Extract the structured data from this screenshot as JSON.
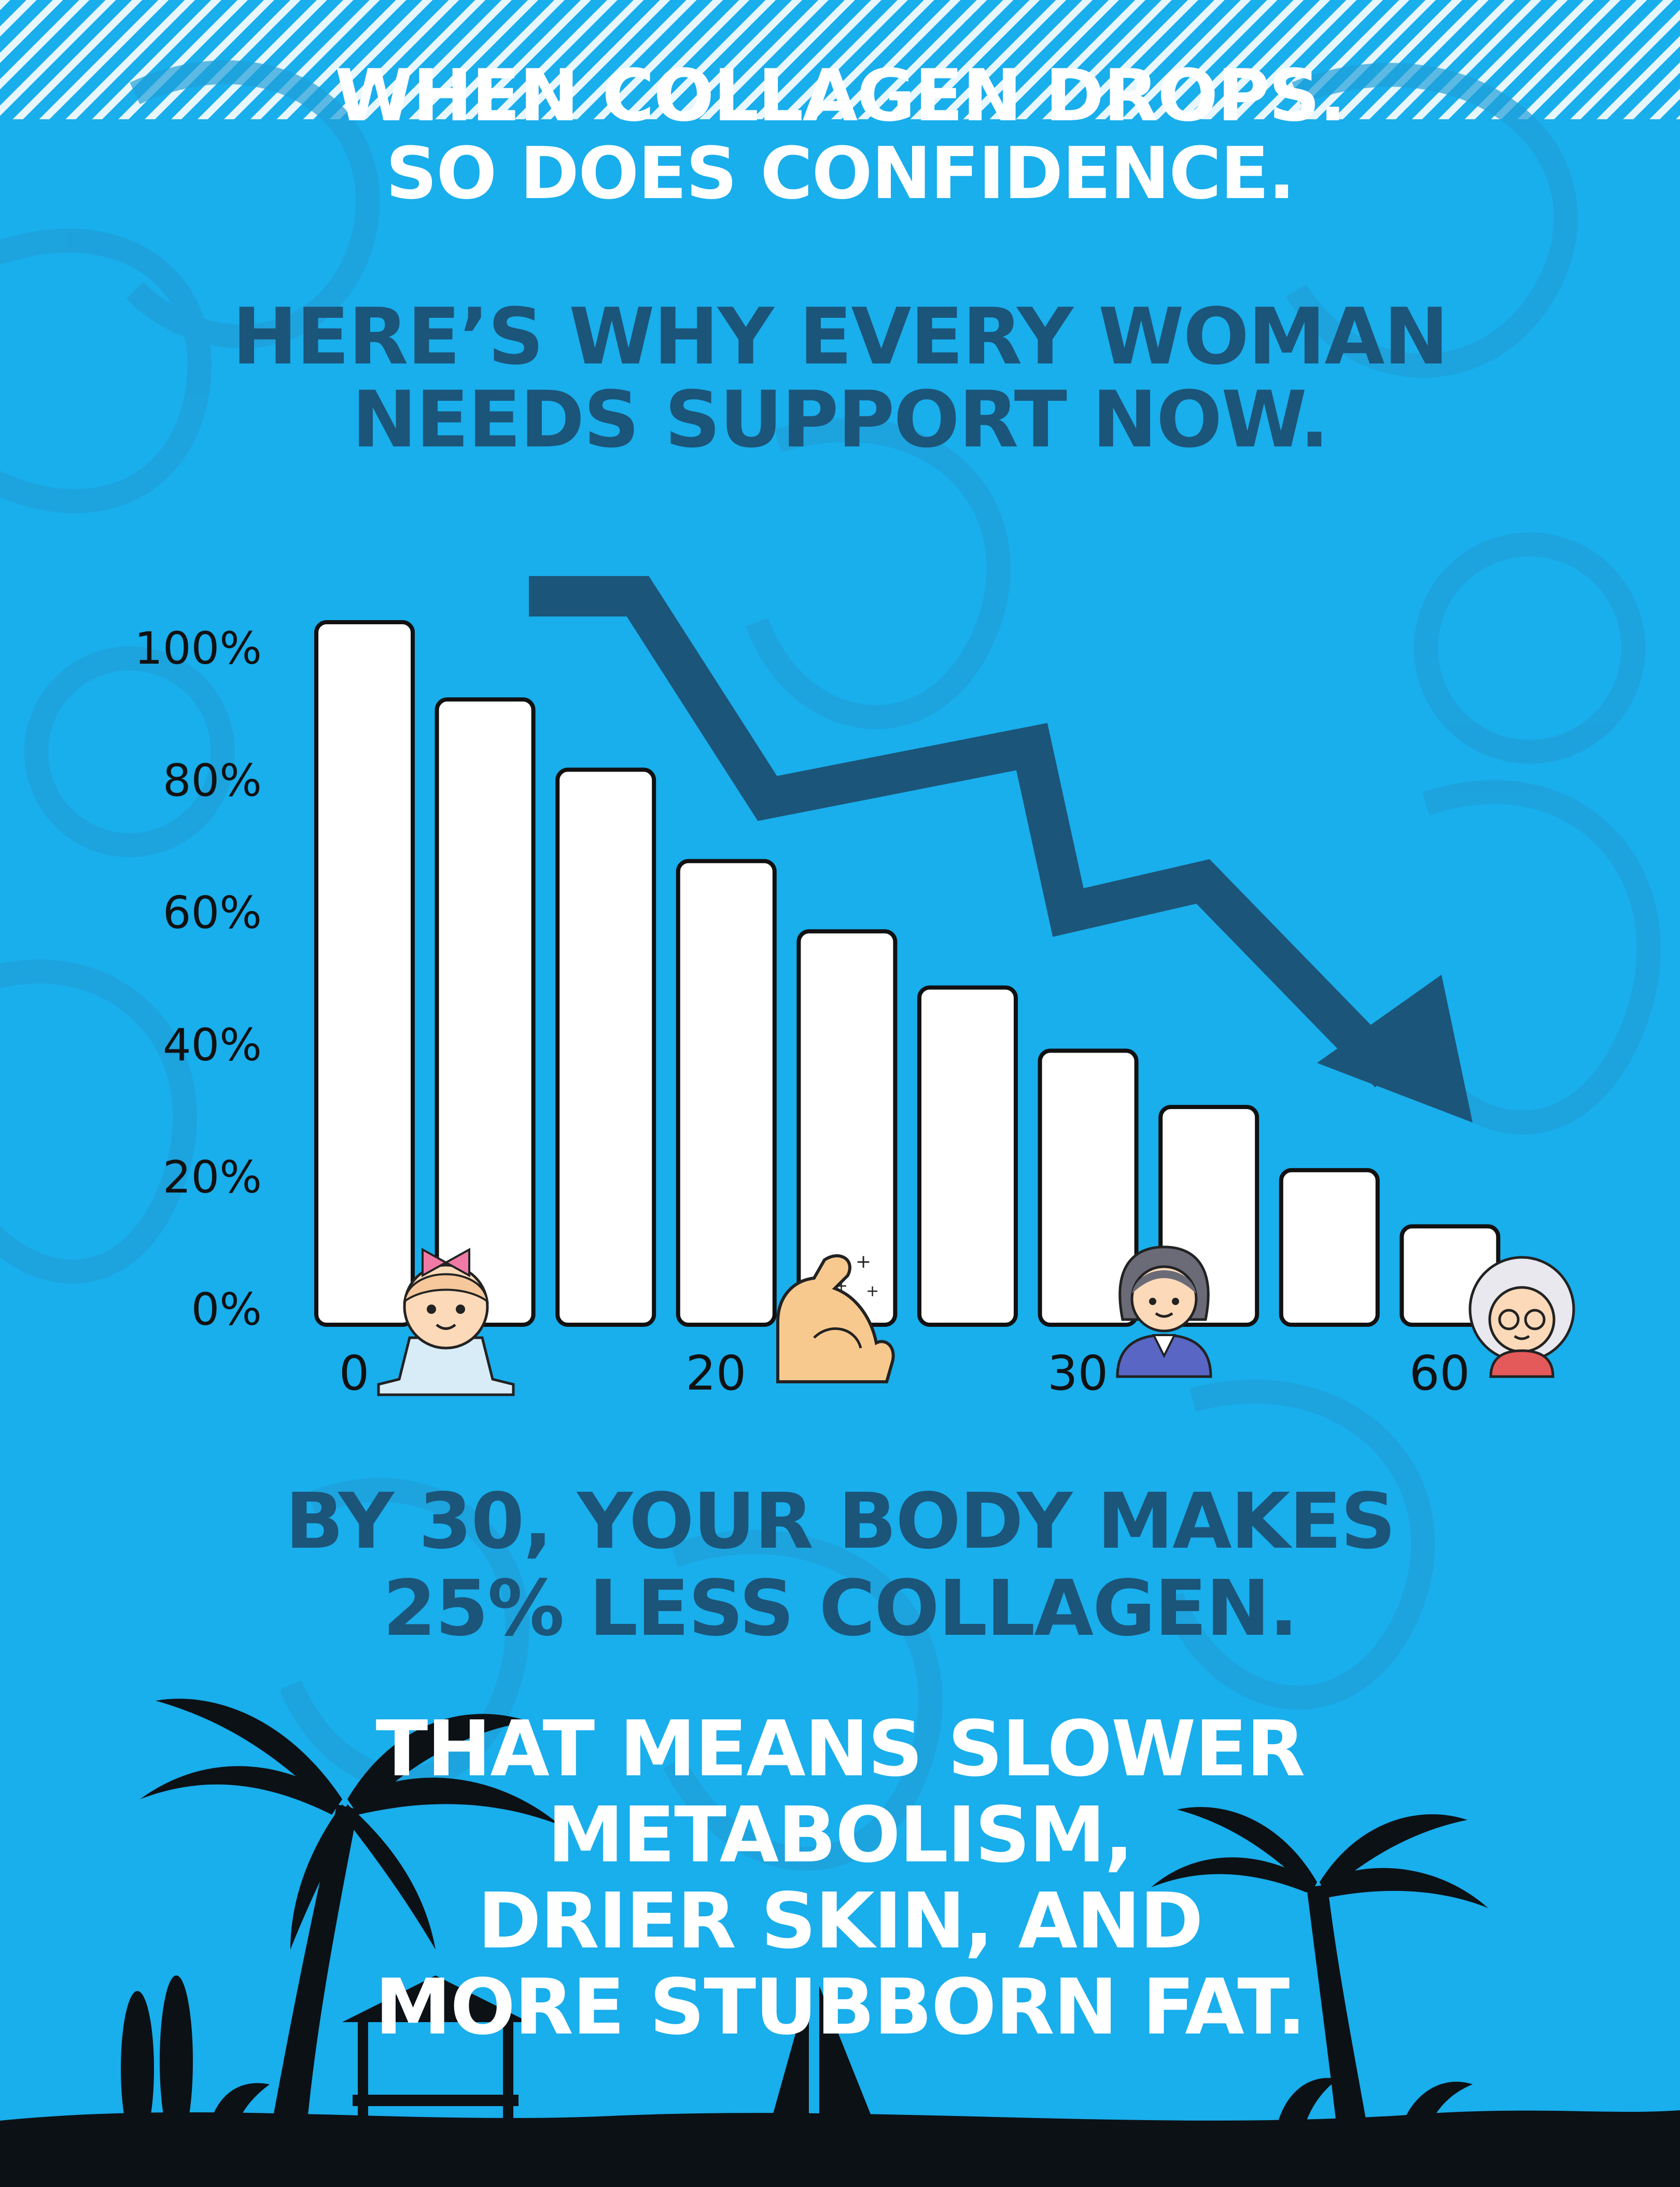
{
  "headlines": {
    "top_line1": "WHEN COLLAGEN DROPS.",
    "top_line2": "SO DOES CONFIDENCE.",
    "sub_line1": "HERE’S WHY EVERY WOMAN",
    "sub_line2": "NEEDS SUPPORT NOW.",
    "fact_line1": "BY 30, YOUR BODY MAKES",
    "fact_line2": "25% LESS COLLAGEN.",
    "result_line1": "THAT MEANS SLOWER",
    "result_line2": "METABOLISM,",
    "result_line3": "DRIER SKIN, AND",
    "result_line4": "MORE STUBBORN FAT."
  },
  "colors": {
    "background": "#19aeec",
    "dark_text": "#1b5579",
    "white": "#ffffff",
    "arrow": "#1b5579"
  },
  "icons": [
    "baby-icon",
    "flexed-bicep-icon",
    "woman-icon",
    "grandmother-icon",
    "palm-tree-icon",
    "sailboat-icon",
    "surfboard-icon",
    "beach-hut-icon"
  ],
  "chart_data": {
    "type": "bar",
    "bar_count": 10,
    "values": [
      100,
      89,
      79,
      66,
      56,
      48,
      39,
      31,
      22,
      14
    ],
    "y_ticks": [
      "100%",
      "80%",
      "60%",
      "40%",
      "20%",
      "0%"
    ],
    "x_tick_labels": [
      {
        "text": "0",
        "bar_index": 0.5
      },
      {
        "text": "20",
        "bar_index": 3.5
      },
      {
        "text": "30",
        "bar_index": 6.5
      },
      {
        "text": "60",
        "bar_index": 9.5
      }
    ],
    "ylim": [
      0,
      100
    ],
    "title": "",
    "xlabel": "",
    "ylabel": "",
    "grid": false,
    "trend_arrow": "downward"
  }
}
